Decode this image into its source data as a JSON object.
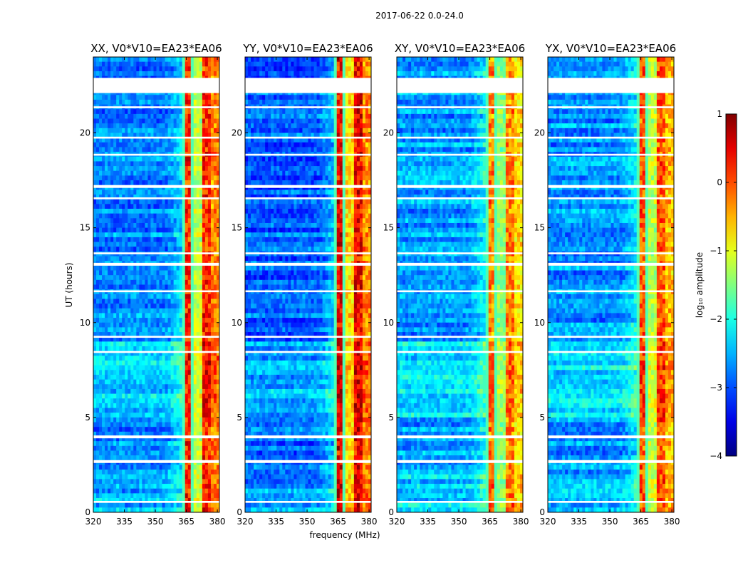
{
  "figure": {
    "suptitle": "2017-06-22 0.0-24.0"
  },
  "chart_data": {
    "type": "heatmap",
    "xlabel": "frequency (MHz)",
    "ylabel": "UT (hours)",
    "xlim": [
      320,
      381
    ],
    "ylim": [
      0,
      24
    ],
    "x_ticks": [
      "320",
      "335",
      "350",
      "365",
      "380"
    ],
    "y_ticks": [
      "0",
      "5",
      "10",
      "15",
      "20"
    ],
    "panels": [
      {
        "title": "XX, V0*V10=EA23*EA06",
        "band_mean": [
          0.9,
          0.6,
          0.9,
          0.8
        ],
        "background": 0.25
      },
      {
        "title": "YY, V0*V10=EA23*EA06",
        "band_mean": [
          0.95,
          0.7,
          0.95,
          0.8
        ],
        "background": 0.22
      },
      {
        "title": "XY, V0*V10=EA23*EA06",
        "band_mean": [
          0.8,
          0.55,
          0.8,
          0.7
        ],
        "background": 0.28
      },
      {
        "title": "YX, V0*V10=EA23*EA06",
        "band_mean": [
          0.85,
          0.6,
          0.85,
          0.75
        ],
        "background": 0.27
      }
    ],
    "bright_band_mhz": [
      363,
      381
    ],
    "colorbar": {
      "label": "log₁₀ amplitude",
      "range": [
        -4,
        1
      ],
      "ticks": [
        "1",
        "0",
        "−1",
        "−2",
        "−3",
        "−4"
      ],
      "colormap": "jet"
    },
    "flagged_gaps_hours": [
      [
        22.1,
        22.9
      ],
      [
        2.6,
        2.75
      ],
      [
        3.9,
        4.05
      ],
      [
        0.5,
        0.6
      ],
      [
        8.4,
        8.5
      ],
      [
        9.2,
        9.3
      ],
      [
        11.6,
        11.7
      ],
      [
        13.0,
        13.15
      ],
      [
        13.6,
        13.7
      ],
      [
        16.5,
        16.6
      ],
      [
        17.1,
        17.25
      ],
      [
        18.8,
        18.9
      ],
      [
        19.7,
        19.8
      ],
      [
        21.3,
        21.4
      ]
    ]
  }
}
